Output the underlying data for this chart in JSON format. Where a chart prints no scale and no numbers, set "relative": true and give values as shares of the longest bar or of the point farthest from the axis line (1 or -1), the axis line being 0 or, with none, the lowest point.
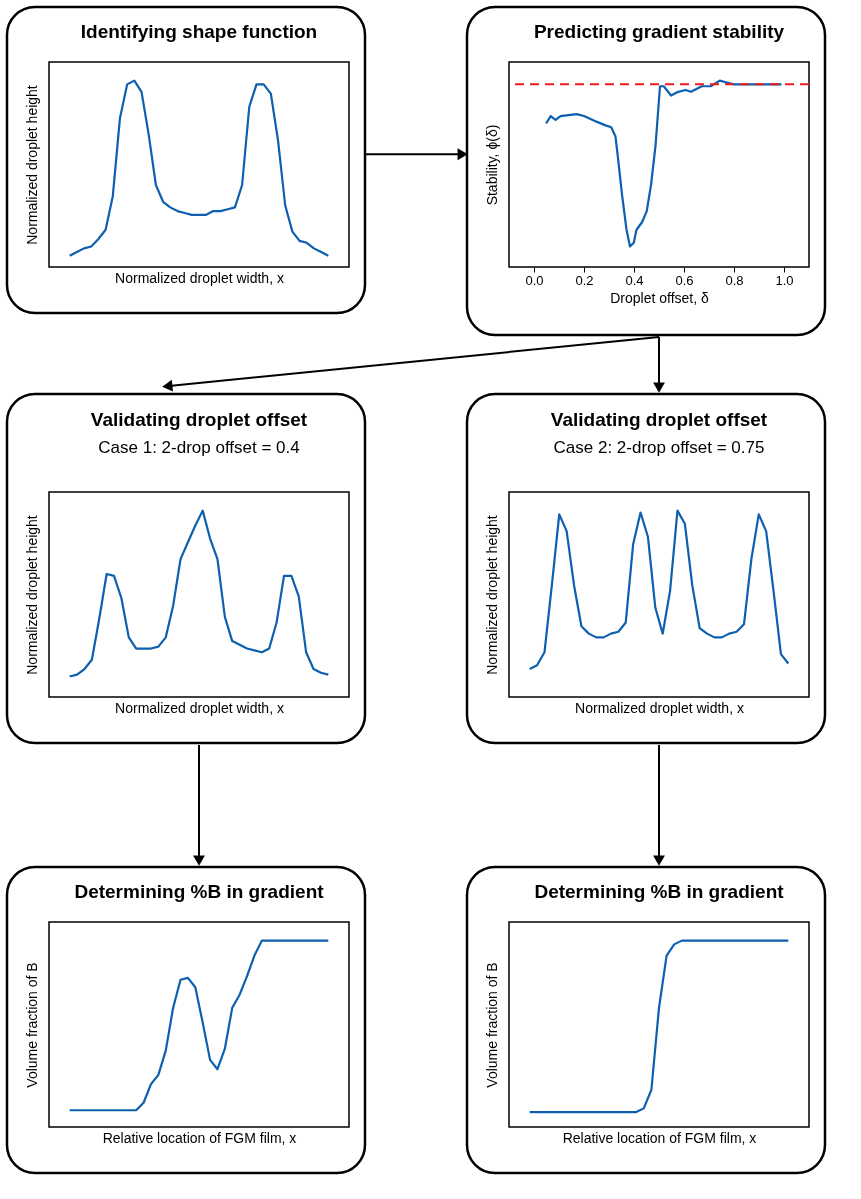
{
  "chart_data": [
    {
      "type": "line",
      "title": "Identifying shape function",
      "xlabel": "Normalized droplet width, x",
      "ylabel": "Normalized droplet height",
      "relative": true,
      "categories": [
        null,
        null,
        null,
        null,
        null,
        null,
        null,
        null,
        null,
        null,
        null,
        null,
        null,
        null,
        null,
        null,
        null,
        null,
        null,
        null,
        null,
        null,
        null,
        null,
        null,
        null,
        null,
        null,
        null,
        null,
        null,
        null,
        null,
        null,
        null,
        null,
        null
      ],
      "series": [
        {
          "color": "#0d5fb0",
          "values": [
            0.06,
            0.08,
            0.1,
            0.11,
            0.15,
            0.2,
            0.38,
            0.8,
            0.98,
            1.0,
            0.94,
            0.71,
            0.44,
            0.35,
            0.32,
            0.3,
            0.29,
            0.28,
            0.28,
            0.28,
            0.3,
            0.3,
            0.31,
            0.32,
            0.44,
            0.86,
            0.98,
            0.98,
            0.93,
            0.68,
            0.33,
            0.19,
            0.14,
            0.13,
            0.1,
            0.08,
            0.06
          ]
        }
      ]
    },
    {
      "type": "line",
      "title": "Predicting gradient stability",
      "xlabel": "Droplet offset, δ",
      "ylabel": "Stability, ϕ(δ)",
      "relative": true,
      "x": [
        0.048,
        0.067,
        0.086,
        0.106,
        0.171,
        0.2,
        0.25,
        0.286,
        0.309,
        0.326,
        0.338,
        0.352,
        0.37,
        0.384,
        0.399,
        0.41,
        0.432,
        0.451,
        0.468,
        0.486,
        0.504,
        0.519,
        0.548,
        0.577,
        0.606,
        0.628,
        0.671,
        0.707,
        0.743,
        0.771,
        0.8,
        0.845,
        0.917,
        0.99
      ],
      "series": [
        {
          "color": "#0d5fb0",
          "values": [
            0.77,
            0.81,
            0.79,
            0.81,
            0.82,
            0.81,
            0.78,
            0.76,
            0.75,
            0.7,
            0.56,
            0.39,
            0.2,
            0.11,
            0.13,
            0.2,
            0.24,
            0.3,
            0.44,
            0.65,
            0.97,
            0.97,
            0.92,
            0.94,
            0.95,
            0.94,
            0.97,
            0.97,
            1.0,
            0.99,
            0.98,
            0.98,
            0.98,
            0.98
          ]
        }
      ],
      "xlim": [
        -0.1,
        1.1
      ],
      "xticks": [
        {
          "value": 0,
          "label": "0.0"
        },
        0.2,
        0.4,
        0.6,
        0.8,
        {
          "value": 1,
          "label": "1.0"
        }
      ],
      "ref_lines": [
        {
          "axis": "y",
          "value": 0.98,
          "color": "#ee1c1c",
          "line_style": "dashed"
        }
      ]
    },
    {
      "type": "line",
      "title": "Validating droplet offset",
      "subtitle": "Case 1: 2-drop offset = 0.4",
      "xlabel": "Normalized droplet width, x",
      "ylabel": "Normalized droplet height",
      "relative": true,
      "categories": [
        null,
        null,
        null,
        null,
        null,
        null,
        null,
        null,
        null,
        null,
        null,
        null,
        null,
        null,
        null,
        null,
        null,
        null,
        null,
        null,
        null,
        null,
        null,
        null,
        null,
        null,
        null,
        null,
        null,
        null,
        null,
        null,
        null,
        null,
        null,
        null
      ],
      "series": [
        {
          "color": "#0d5fb0",
          "values": [
            0.11,
            0.12,
            0.15,
            0.2,
            0.42,
            0.66,
            0.65,
            0.53,
            0.32,
            0.26,
            0.26,
            0.26,
            0.27,
            0.32,
            0.49,
            0.74,
            0.83,
            0.92,
            1.0,
            0.85,
            0.74,
            0.43,
            0.3,
            0.28,
            0.26,
            0.25,
            0.24,
            0.26,
            0.4,
            0.65,
            0.65,
            0.54,
            0.24,
            0.15,
            0.13,
            0.12
          ]
        }
      ]
    },
    {
      "type": "line",
      "title": "Validating droplet offset",
      "subtitle": "Case 2: 2-drop offset = 0.75",
      "xlabel": "Normalized droplet width, x",
      "ylabel": "Normalized droplet height",
      "relative": true,
      "categories": [
        null,
        null,
        null,
        null,
        null,
        null,
        null,
        null,
        null,
        null,
        null,
        null,
        null,
        null,
        null,
        null,
        null,
        null,
        null,
        null,
        null,
        null,
        null,
        null,
        null,
        null,
        null,
        null,
        null,
        null,
        null,
        null,
        null,
        null,
        null,
        null
      ],
      "series": [
        {
          "color": "#0d5fb0",
          "values": [
            0.15,
            0.17,
            0.24,
            0.6,
            0.98,
            0.89,
            0.6,
            0.38,
            0.34,
            0.32,
            0.32,
            0.34,
            0.35,
            0.4,
            0.82,
            0.99,
            0.86,
            0.48,
            0.34,
            0.57,
            1.0,
            0.93,
            0.6,
            0.37,
            0.34,
            0.32,
            0.32,
            0.34,
            0.35,
            0.39,
            0.74,
            0.98,
            0.89,
            0.57,
            0.23,
            0.18
          ]
        }
      ]
    },
    {
      "type": "line",
      "title": "Determining %B in gradient",
      "xlabel": "Relative location of FGM film, x",
      "ylabel": "Volume fraction of B",
      "relative": true,
      "categories": [
        null,
        null,
        null,
        null,
        null,
        null,
        null,
        null,
        null,
        null,
        null,
        null,
        null,
        null,
        null,
        null,
        null,
        null,
        null,
        null,
        null,
        null,
        null,
        null,
        null,
        null,
        null,
        null,
        null,
        null,
        null,
        null,
        null,
        null,
        null,
        null
      ],
      "series": [
        {
          "color": "#0d5fb0",
          "values": [
            0.09,
            0.09,
            0.09,
            0.09,
            0.09,
            0.09,
            0.09,
            0.09,
            0.09,
            0.09,
            0.13,
            0.23,
            0.28,
            0.41,
            0.64,
            0.79,
            0.8,
            0.75,
            0.56,
            0.36,
            0.31,
            0.42,
            0.64,
            0.71,
            0.81,
            0.92,
            1.0,
            1.0,
            1.0,
            1.0,
            1.0,
            1.0,
            1.0,
            1.0,
            1.0,
            1.0
          ]
        }
      ]
    },
    {
      "type": "line",
      "title": "Determining %B in gradient",
      "xlabel": "Relative location of FGM film, x",
      "ylabel": "Volume fraction of B",
      "relative": true,
      "categories": [
        null,
        null,
        null,
        null,
        null,
        null,
        null,
        null,
        null,
        null,
        null,
        null,
        null,
        null,
        null,
        null,
        null,
        null,
        null,
        null,
        null,
        null,
        null,
        null,
        null,
        null,
        null,
        null,
        null,
        null,
        null,
        null,
        null,
        null,
        null
      ],
      "series": [
        {
          "color": "#0d5fb0",
          "values": [
            0.08,
            0.08,
            0.08,
            0.08,
            0.08,
            0.08,
            0.08,
            0.08,
            0.08,
            0.08,
            0.08,
            0.08,
            0.08,
            0.08,
            0.08,
            0.1,
            0.2,
            0.64,
            0.92,
            0.98,
            1.0,
            1.0,
            1.0,
            1.0,
            1.0,
            1.0,
            1.0,
            1.0,
            1.0,
            1.0,
            1.0,
            1.0,
            1.0,
            1.0,
            1.0
          ]
        }
      ]
    }
  ]
}
